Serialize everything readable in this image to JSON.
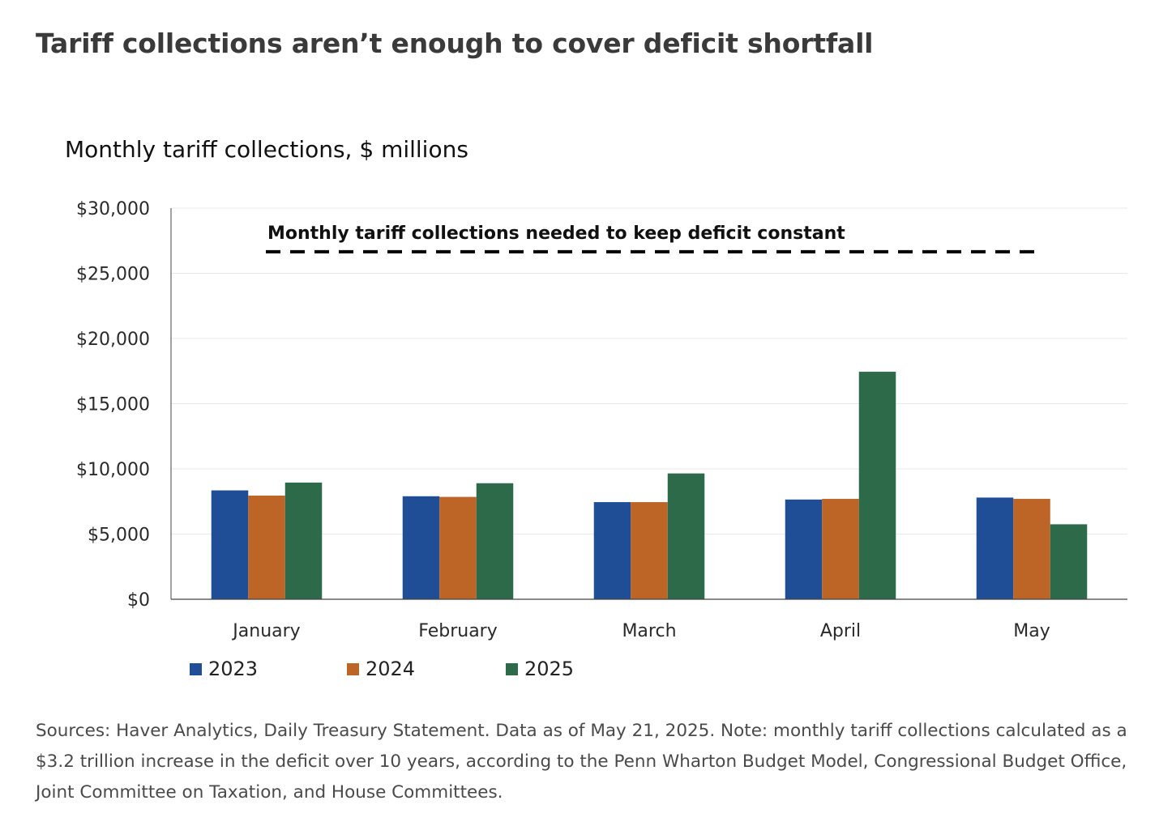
{
  "headline": "Tariff collections aren’t enough to cover deficit shortfall",
  "footnote": "Sources: Haver Analytics, Daily Treasury Statement. Data as of May 21, 2025. Note: monthly tariff collections calculated as a $3.2 trillion increase in the deficit over 10 years, according to the Penn Wharton Budget Model, Congressional Budget Office, Joint Committee on Taxation, and House Committees.",
  "colors": {
    "2023": "#1f4e96",
    "2024": "#bd6427",
    "2025": "#2d6a4a",
    "gridline": "#e8e8e8",
    "axis": "#444444"
  },
  "chart_data": {
    "type": "bar",
    "title": "Monthly tariff collections, $ millions",
    "xlabel": "",
    "ylabel": "",
    "categories": [
      "January",
      "February",
      "March",
      "April",
      "May"
    ],
    "series": [
      {
        "name": "2023",
        "values": [
          8350,
          7900,
          7450,
          7650,
          7800
        ]
      },
      {
        "name": "2024",
        "values": [
          7950,
          7850,
          7450,
          7700,
          7700
        ]
      },
      {
        "name": "2025",
        "values": [
          8950,
          8900,
          9650,
          17450,
          5750
        ]
      }
    ],
    "ylim": [
      0,
      30000
    ],
    "yticks": [
      0,
      5000,
      10000,
      15000,
      20000,
      25000,
      30000
    ],
    "ytick_labels": [
      "$0",
      "$5,000",
      "$10,000",
      "$15,000",
      "$20,000",
      "$25,000",
      "$30,000"
    ],
    "grid": true,
    "legend_position": "bottom-left",
    "reference_line": {
      "label": "Monthly tariff collections needed to keep deficit constant",
      "value": 26650,
      "style": "dashed"
    }
  }
}
